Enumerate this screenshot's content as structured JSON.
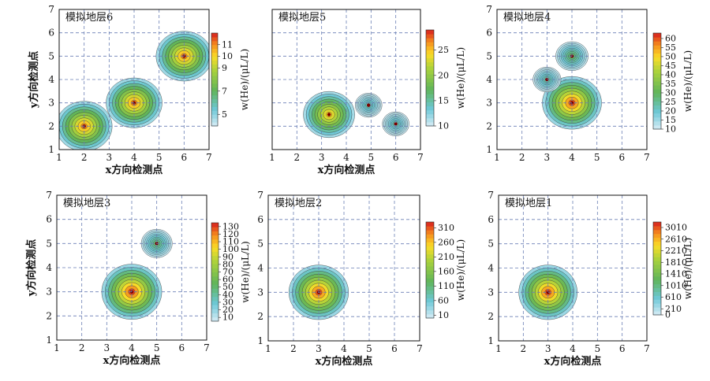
{
  "chart_data": [
    {
      "type": "heatmap",
      "title": "模拟地层6",
      "xlabel": "x方向检测点",
      "ylabel": "y方向检测点",
      "xlim": [
        1,
        7
      ],
      "ylim": [
        1,
        7
      ],
      "x_ticks": [
        1,
        2,
        3,
        4,
        5,
        6,
        7
      ],
      "y_ticks": [
        1,
        2,
        3,
        4,
        5,
        6,
        7
      ],
      "grid": true,
      "colorbar": {
        "label": "w(He)/(μL/L)",
        "ticks": [
          5,
          7,
          9,
          10,
          11
        ],
        "labels": [
          "5",
          "7",
          "9",
          "10",
          "11"
        ],
        "min": 4,
        "max": 12
      },
      "hotspots": [
        {
          "x": 2,
          "y": 2,
          "value": 11
        },
        {
          "x": 4,
          "y": 3,
          "value": 11
        },
        {
          "x": 6,
          "y": 5,
          "value": 11
        }
      ]
    },
    {
      "type": "heatmap",
      "title": "模拟地层5",
      "xlabel": "x方向检测点",
      "ylabel": "",
      "xlim": [
        1,
        7
      ],
      "ylim": [
        1,
        7
      ],
      "x_ticks": [
        1,
        2,
        3,
        4,
        5,
        6,
        7
      ],
      "y_ticks": [],
      "grid": true,
      "colorbar": {
        "label": "w(He)/(μL/L)",
        "ticks": [
          10,
          15,
          20,
          25
        ],
        "labels": [
          "10",
          "15",
          "20",
          "25"
        ],
        "min": 10,
        "max": 29
      },
      "hotspots": [
        {
          "x": 3.3,
          "y": 2.5,
          "value": 25
        },
        {
          "x": 4.9,
          "y": 2.9,
          "value": 15
        },
        {
          "x": 6,
          "y": 2.1,
          "value": 15
        }
      ]
    },
    {
      "type": "heatmap",
      "title": "模拟地层4",
      "xlabel": "",
      "ylabel": "",
      "xlim": [
        1,
        7
      ],
      "ylim": [
        1,
        7
      ],
      "x_ticks": [
        1,
        2,
        3,
        4,
        5,
        6,
        7
      ],
      "y_ticks": [
        1,
        2,
        3,
        4,
        5,
        6,
        7
      ],
      "grid": true,
      "colorbar": {
        "label": "w(He)/(μL/L)",
        "ticks": [
          10,
          15,
          20,
          25,
          30,
          35,
          40,
          45,
          50,
          55,
          60
        ],
        "labels": [
          "10",
          "15",
          "20",
          "25",
          "30",
          "35",
          "40",
          "45",
          "50",
          "55",
          "60"
        ],
        "min": 10,
        "max": 63
      },
      "hotspots": [
        {
          "x": 4,
          "y": 3,
          "value": 60
        },
        {
          "x": 4,
          "y": 5,
          "value": 30
        },
        {
          "x": 3,
          "y": 4,
          "value": 25
        }
      ]
    },
    {
      "type": "heatmap",
      "title": "模拟地层3",
      "xlabel": "x方向检测点",
      "ylabel": "y方向检测点",
      "xlim": [
        1,
        7
      ],
      "ylim": [
        1,
        7
      ],
      "x_ticks": [
        1,
        2,
        3,
        4,
        5,
        6,
        7
      ],
      "y_ticks": [
        1,
        2,
        3,
        4,
        5,
        6,
        7
      ],
      "grid": true,
      "colorbar": {
        "label": "w(He)/(μL/L)",
        "ticks": [
          10,
          20,
          30,
          40,
          50,
          60,
          70,
          80,
          90,
          100,
          110,
          120,
          130
        ],
        "labels": [
          "10",
          "20",
          "30",
          "40",
          "50",
          "60",
          "70",
          "80",
          "90",
          "100",
          "110",
          "120",
          "130"
        ],
        "min": 5,
        "max": 135
      },
      "hotspots": [
        {
          "x": 4,
          "y": 3,
          "value": 130
        },
        {
          "x": 5,
          "y": 5,
          "value": 50
        }
      ]
    },
    {
      "type": "heatmap",
      "title": "模拟地层2",
      "xlabel": "x方向检测点",
      "ylabel": "",
      "xlim": [
        1,
        7
      ],
      "ylim": [
        1,
        7
      ],
      "x_ticks": [
        1,
        2,
        3,
        4,
        5,
        6,
        7
      ],
      "y_ticks": [
        1,
        2,
        3,
        4,
        5,
        6,
        7
      ],
      "grid": true,
      "colorbar": {
        "label": "w(He)/(μL/L)",
        "ticks": [
          10,
          60,
          110,
          160,
          210,
          260,
          310
        ],
        "labels": [
          "10",
          "60",
          "110",
          "160",
          "210",
          "260",
          "310"
        ],
        "min": 0,
        "max": 330
      },
      "hotspots": [
        {
          "x": 3,
          "y": 3,
          "value": 310
        }
      ]
    },
    {
      "type": "heatmap",
      "title": "模拟地层1",
      "xlabel": "x方向检测点",
      "ylabel": "",
      "xlim": [
        1,
        7
      ],
      "ylim": [
        1,
        7
      ],
      "x_ticks": [
        1,
        2,
        3,
        4,
        5,
        6,
        7
      ],
      "y_ticks": [
        1,
        2,
        3,
        4,
        5,
        6,
        7
      ],
      "grid": true,
      "colorbar": {
        "label": "w(He)/(μL/L)",
        "ticks": [
          0,
          210,
          610,
          1010,
          1410,
          1810,
          2210,
          2610,
          3010
        ],
        "labels": [
          "0",
          "210",
          "610",
          "1010",
          "1410",
          "1810",
          "2210",
          "2610",
          "3010"
        ],
        "min": 0,
        "max": 3200
      },
      "hotspots": [
        {
          "x": 3,
          "y": 3,
          "value": 3010
        }
      ]
    }
  ]
}
